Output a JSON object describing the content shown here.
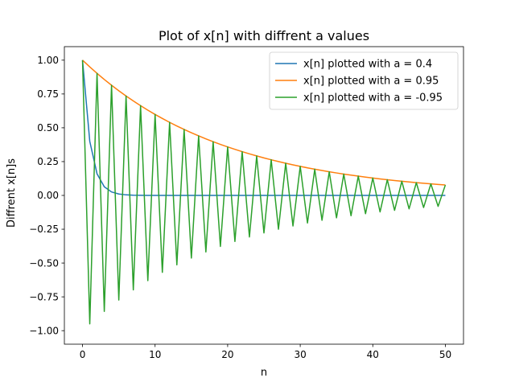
{
  "chart_data": {
    "type": "line",
    "title": "Plot of x[n] with diffrent a values",
    "xlabel": "n",
    "ylabel": "Diffrent x[n]s",
    "n_start": 0,
    "n_end": 50,
    "xlim": [
      -2.5,
      52.5
    ],
    "ylim": [
      -1.1,
      1.1
    ],
    "xticks": [
      0,
      10,
      20,
      30,
      40,
      50
    ],
    "yticks": [
      -1.0,
      -0.75,
      -0.5,
      -0.25,
      0.0,
      0.25,
      0.5,
      0.75,
      1.0
    ],
    "xtick_labels": [
      "0",
      "10",
      "20",
      "30",
      "40",
      "50"
    ],
    "ytick_labels": [
      "−1.00",
      "−0.75",
      "−0.50",
      "−0.25",
      "0.00",
      "0.25",
      "0.50",
      "0.75",
      "1.00"
    ],
    "grid": false,
    "legend_position": "top-right",
    "series": [
      {
        "name": "x[n] plotted with a = 0.4",
        "a": 0.4,
        "color": "#1f77b4"
      },
      {
        "name": "x[n] plotted with a = 0.95",
        "a": 0.95,
        "color": "#ff7f0e"
      },
      {
        "name": "x[n] plotted with a = -0.95",
        "a": -0.95,
        "color": "#2ca02c"
      }
    ]
  }
}
